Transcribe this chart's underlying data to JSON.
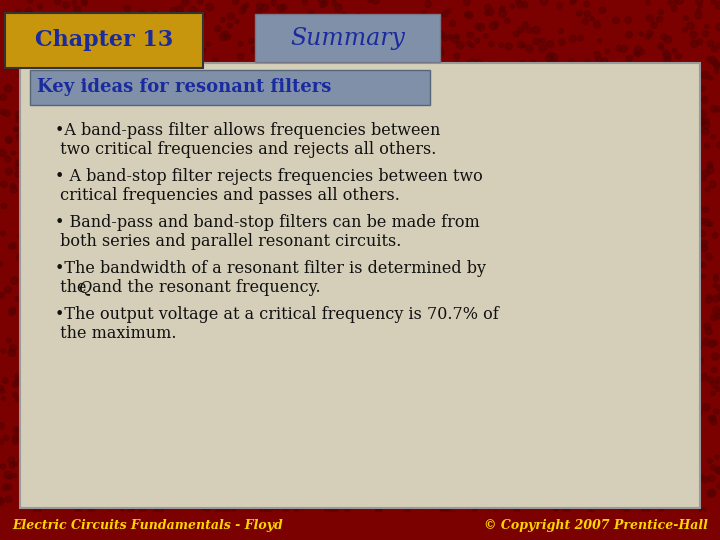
{
  "chapter_text": "Chapter 13",
  "summary_text": "Summary",
  "header_text": "Key ideas for resonant filters",
  "bullet1_line1": "•A band-pass filter allows frequencies between",
  "bullet1_line2": " two critical frequencies and rejects all others.",
  "bullet2_line1": "• A band-stop filter rejects frequencies between two",
  "bullet2_line2": " critical frequencies and passes all others.",
  "bullet3_line1": "• Band-pass and band-stop filters can be made from",
  "bullet3_line2": " both series and parallel resonant circuits.",
  "bullet4_line1": "•The bandwidth of a resonant filter is determined by",
  "bullet4_line2_pre": " the ",
  "bullet4_line2_Q": "Q",
  "bullet4_line2_post": " and the resonant frequency.",
  "bullet5_line1": "•The output voltage at a critical frequency is 70.7% of",
  "bullet5_line2": " the maximum.",
  "bg_dark_red": "#7B0000",
  "bg_card": "#D5CEB8",
  "chapter_box_color": "#C8960C",
  "summary_box_color": "#8090A8",
  "header_box_color": "#8090A8",
  "text_blue": "#1A2BA0",
  "text_black": "#111111",
  "footer_left": "Electric Circuits Fundamentals - Floyd",
  "footer_right": "© Copyright 2007 Prentice-Hall",
  "footer_color": "#FFD700"
}
